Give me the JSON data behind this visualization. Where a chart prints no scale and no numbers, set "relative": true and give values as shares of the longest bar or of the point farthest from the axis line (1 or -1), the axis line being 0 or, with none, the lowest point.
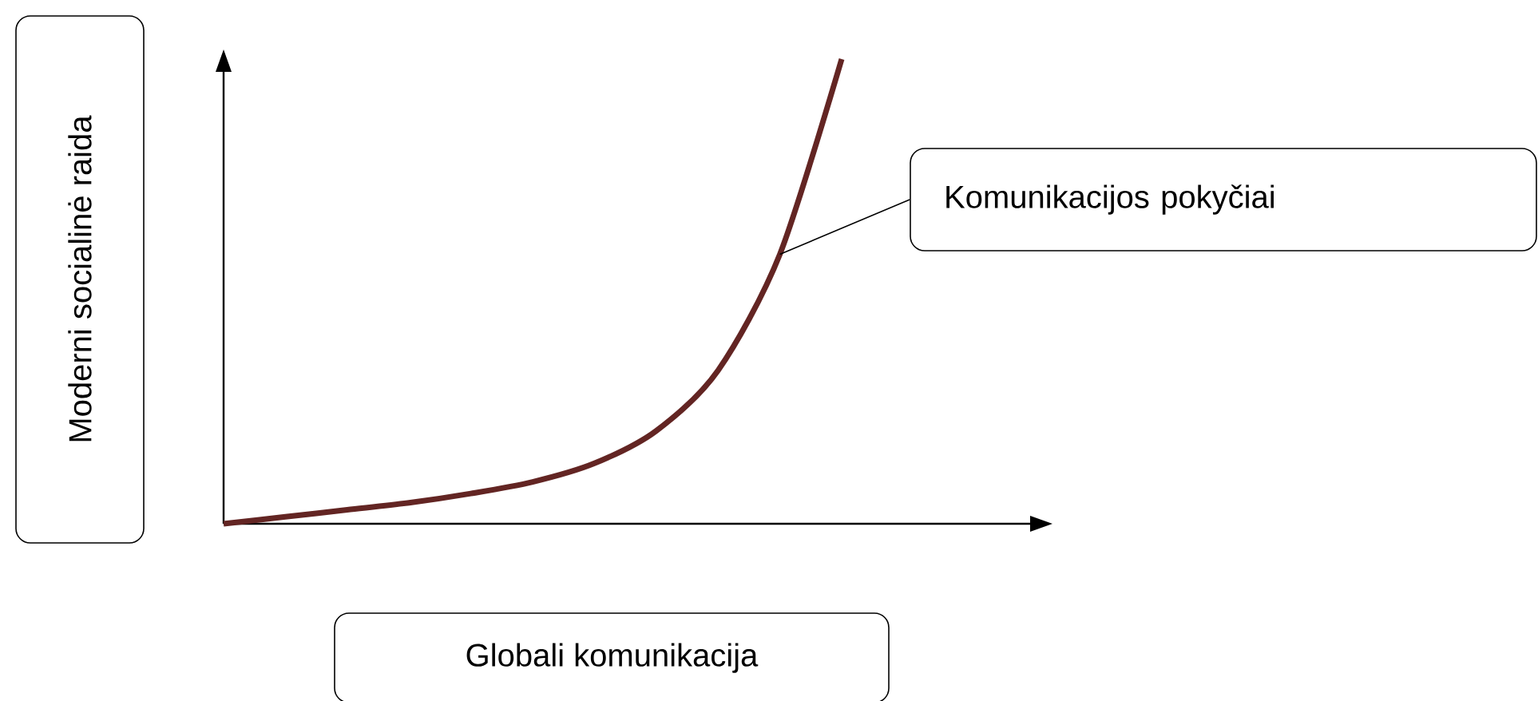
{
  "chart_data": {
    "type": "line",
    "relative": true,
    "xlabel": "Globali komunikacija",
    "ylabel": "Moderni socialinė raida",
    "categories": [
      null,
      null,
      null,
      null,
      null,
      null,
      null,
      null,
      null,
      null,
      null
    ],
    "values": [
      0,
      0.015,
      0.03,
      0.045,
      0.065,
      0.09,
      0.13,
      0.2,
      0.33,
      0.58,
      1
    ],
    "color": "#632523",
    "annotations": [
      "Komunikacijos pokyčiai"
    ]
  }
}
